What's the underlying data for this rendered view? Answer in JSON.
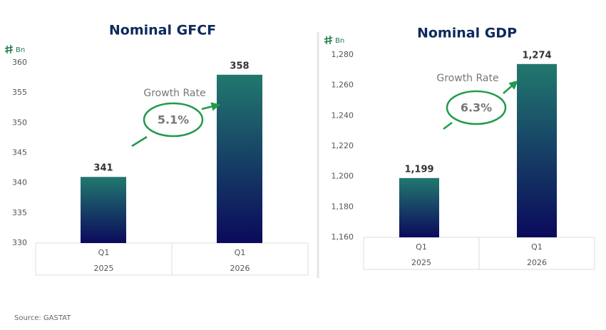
{
  "chart_data": [
    {
      "type": "bar",
      "title": "Nominal GFCF",
      "unit": "Bn",
      "categories": [
        "Q1",
        "Q1"
      ],
      "years": [
        "2025",
        "2026"
      ],
      "values": [
        341,
        358
      ],
      "ylim": [
        330,
        360
      ],
      "yticks": [
        330,
        335,
        340,
        345,
        350,
        355,
        360
      ],
      "annotation": {
        "label": "Growth Rate",
        "value": "5.1%"
      }
    },
    {
      "type": "bar",
      "title": "Nominal GDP",
      "unit": "Bn",
      "categories": [
        "Q1",
        "Q1"
      ],
      "years": [
        "2025",
        "2026"
      ],
      "values": [
        1199,
        1274
      ],
      "value_labels": [
        "1,199",
        "1,274"
      ],
      "ylim": [
        1160,
        1280
      ],
      "yticks": [
        {
          "value": 1160,
          "label": "1,160"
        },
        {
          "value": 1180,
          "label": "1,180"
        },
        {
          "value": 1200,
          "label": "1,200"
        },
        {
          "value": 1220,
          "label": "1,220"
        },
        {
          "value": 1240,
          "label": "1,240"
        },
        {
          "value": 1260,
          "label": "1,260"
        },
        {
          "value": 1280,
          "label": "1,280"
        }
      ],
      "annotation": {
        "label": "Growth Rate",
        "value": "6.3%"
      }
    }
  ],
  "source": "Source: GASTAT"
}
